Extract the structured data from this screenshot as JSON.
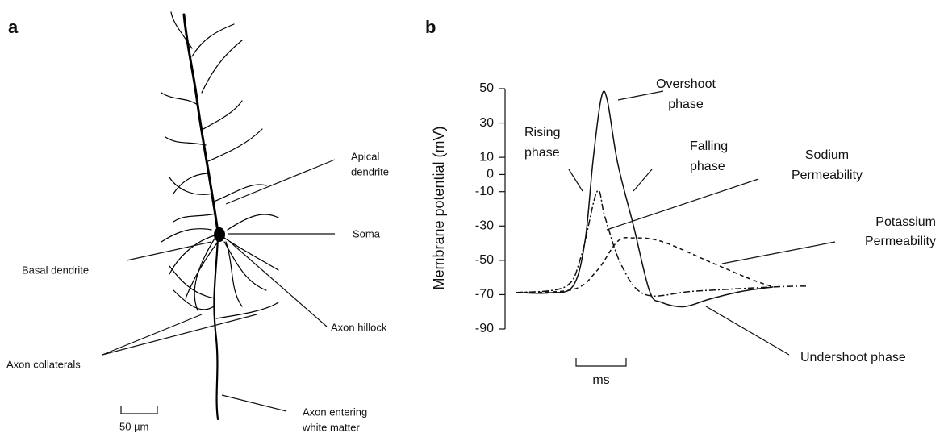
{
  "panel_a": {
    "letter": "a",
    "labels": [
      {
        "lines": [
          "Apical",
          "dendrite"
        ]
      },
      {
        "lines": [
          "Soma"
        ]
      },
      {
        "lines": [
          "Basal dendrite"
        ]
      },
      {
        "lines": [
          "Axon hillock"
        ]
      },
      {
        "lines": [
          "Axon collaterals"
        ]
      },
      {
        "lines": [
          "Axon entering",
          "white matter"
        ]
      }
    ],
    "scale_bar": "50 µm"
  },
  "chart_data": {
    "type": "line",
    "letter": "b",
    "y_label": "Membrane potential (mV)",
    "ylim": [
      -90,
      50
    ],
    "yticks": [
      50,
      30,
      10,
      0,
      -10,
      -30,
      -50,
      -70,
      -90
    ],
    "xlim": [
      0,
      5.8
    ],
    "scale_bar": "ms",
    "series": [
      {
        "style": "solid",
        "color": "#111111",
        "x": [
          0,
          0.65,
          1.13,
          1.37,
          1.53,
          1.69,
          1.81,
          2.02,
          2.34,
          2.66,
          2.9,
          3.35,
          3.87,
          4.52,
          5.13
        ],
        "values": [
          -68.8,
          -69,
          -65,
          -39,
          8,
          44,
          44,
          7,
          -30,
          -68,
          -74.5,
          -77,
          -72.5,
          -68,
          -65.5
        ]
      },
      {
        "style": "dashdot",
        "color": "#111111",
        "x": [
          0,
          0.97,
          1.29,
          1.61,
          1.77,
          2.1,
          2.58,
          3.55,
          5.13,
          5.81
        ],
        "values": [
          -68.8,
          -65.5,
          -48,
          -10,
          -25,
          -53,
          -70,
          -68,
          -65.5,
          -65
        ]
      },
      {
        "style": "dashed",
        "color": "#111111",
        "x": [
          0,
          1.13,
          1.61,
          2.02,
          2.34,
          2.9,
          3.87,
          4.68,
          5.13
        ],
        "values": [
          -68.8,
          -67,
          -56,
          -39,
          -37,
          -39,
          -51,
          -61,
          -65.5
        ]
      }
    ],
    "annotations": [
      {
        "lines": [
          "Overshoot",
          "phase"
        ]
      },
      {
        "lines": [
          "Rising",
          "phase"
        ]
      },
      {
        "lines": [
          "Falling",
          "phase"
        ]
      },
      {
        "lines": [
          "Sodium",
          "Permeability"
        ]
      },
      {
        "lines": [
          "Potassium",
          "Permeability"
        ]
      },
      {
        "lines": [
          "Undershoot phase"
        ]
      }
    ]
  }
}
